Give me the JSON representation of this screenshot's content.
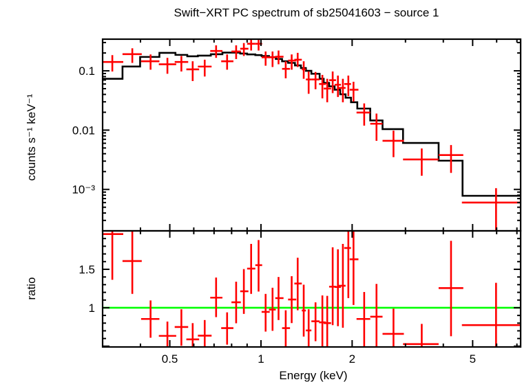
{
  "chart_data": {
    "type": "scatter",
    "title": "Swift−XRT PC spectrum of sb25041603 − source 1",
    "xlabel": "Energy (keV)",
    "xscale": "log",
    "xlim": [
      0.3,
      7.2
    ],
    "x_ticks": [
      0.5,
      1,
      2,
      5
    ],
    "x_ticklabels": [
      "0.5",
      "1",
      "2",
      "5"
    ],
    "colors": {
      "data": "#ff0000",
      "model": "#000000",
      "unity": "#00ff00",
      "axes": "#000000"
    },
    "panels": [
      {
        "name": "spectrum",
        "ylabel": "counts s⁻¹ keV⁻¹",
        "yscale": "log",
        "ylim": [
          0.0002,
          0.342
        ],
        "y_ticks": [
          0.1,
          0.01,
          0.001
        ],
        "y_ticklabels": [
          "0.1",
          "0.01",
          "10⁻³"
        ],
        "data_points": [
          [
            0.323,
            0.299,
            0.351,
            0.141,
            0.0974,
            0.184
          ],
          [
            0.376,
            0.349,
            0.404,
            0.191,
            0.136,
            0.24
          ],
          [
            0.432,
            0.402,
            0.462,
            0.145,
            0.1045,
            0.189
          ],
          [
            0.491,
            0.46,
            0.525,
            0.129,
            0.0892,
            0.1655
          ],
          [
            0.546,
            0.519,
            0.575,
            0.141,
            0.0974,
            0.178
          ],
          [
            0.595,
            0.567,
            0.625,
            0.106,
            0.0672,
            0.145
          ],
          [
            0.652,
            0.619,
            0.687,
            0.118,
            0.0802,
            0.154
          ],
          [
            0.711,
            0.68,
            0.746,
            0.216,
            0.1655,
            0.269
          ],
          [
            0.773,
            0.739,
            0.811,
            0.145,
            0.1045,
            0.189
          ],
          [
            0.828,
            0.799,
            0.858,
            0.212,
            0.158,
            0.269
          ],
          [
            0.878,
            0.854,
            0.909,
            0.236,
            0.178,
            0.294
          ],
          [
            0.928,
            0.9,
            0.958,
            0.286,
            0.22,
            0.351
          ],
          [
            0.982,
            0.958,
            1.009,
            0.286,
            0.22,
            0.351
          ],
          [
            1.036,
            1.005,
            1.069,
            0.169,
            0.122,
            0.212
          ],
          [
            1.092,
            1.063,
            1.119,
            0.169,
            0.116,
            0.212
          ],
          [
            1.143,
            1.115,
            1.187,
            0.173,
            0.129,
            0.22
          ],
          [
            1.207,
            1.174,
            1.247,
            0.108,
            0.0747,
            0.145
          ],
          [
            1.263,
            1.229,
            1.308,
            0.149,
            0.1045,
            0.189
          ],
          [
            1.322,
            1.289,
            1.364,
            0.154,
            0.116,
            0.201
          ],
          [
            1.384,
            1.364,
            1.407,
            0.106,
            0.0734,
            0.145
          ],
          [
            1.437,
            1.407,
            1.467,
            0.0715,
            0.041,
            0.0974
          ],
          [
            1.514,
            1.467,
            1.562,
            0.0715,
            0.0489,
            0.0957
          ],
          [
            1.595,
            1.555,
            1.638,
            0.0599,
            0.0343,
            0.0853
          ],
          [
            1.655,
            1.611,
            1.704,
            0.0502,
            0.0295,
            0.0734
          ],
          [
            1.725,
            1.679,
            1.769,
            0.0696,
            0.0421,
            0.0974
          ],
          [
            1.795,
            1.751,
            1.837,
            0.0583,
            0.0362,
            0.0831
          ],
          [
            1.864,
            1.806,
            1.903,
            0.0515,
            0.0295,
            0.0734
          ],
          [
            1.943,
            1.883,
            1.983,
            0.0599,
            0.0375,
            0.0831
          ],
          [
            2.021,
            1.963,
            2.098,
            0.048,
            0.0303,
            0.0654
          ],
          [
            2.192,
            2.068,
            2.295,
            0.0198,
            0.0119,
            0.0282
          ],
          [
            2.407,
            2.295,
            2.52,
            0.0128,
            0.0066,
            0.019
          ],
          [
            2.739,
            2.52,
            2.964,
            0.0066,
            0.0035,
            0.0098
          ],
          [
            3.395,
            2.945,
            3.86,
            0.0032,
            0.0017,
            0.0049
          ],
          [
            4.242,
            3.86,
            4.656,
            0.0038,
            0.0019,
            0.0056
          ],
          [
            5.973,
            4.607,
            7.36,
            0.0006,
            0.0001,
            0.00105
          ]
        ],
        "model_step": {
          "edges": [
            0.299,
            0.349,
            0.399,
            0.462,
            0.522,
            0.571,
            0.619,
            0.683,
            0.746,
            0.854,
            0.9,
            0.958,
            1.005,
            1.063,
            1.119,
            1.174,
            1.229,
            1.295,
            1.355,
            1.407,
            1.467,
            1.562,
            1.611,
            1.679,
            1.751,
            1.826,
            1.903,
            1.983,
            2.08,
            2.295,
            2.52,
            2.945,
            3.86,
            4.63,
            7.36
          ],
          "values": [
            0.0734,
            0.1183,
            0.1715,
            0.2011,
            0.1857,
            0.176,
            0.1807,
            0.1907,
            0.2029,
            0.1958,
            0.189,
            0.1841,
            0.1776,
            0.17,
            0.1584,
            0.1449,
            0.1362,
            0.1236,
            0.1112,
            0.1,
            0.0892,
            0.0734,
            0.0626,
            0.0548,
            0.048,
            0.0402,
            0.0352,
            0.0295,
            0.0231,
            0.01456,
            0.0104,
            0.00607,
            0.00305,
            0.00078
          ]
        }
      },
      {
        "name": "ratio",
        "ylabel": "ratio",
        "yscale": "linear",
        "ylim": [
          0.49,
          2.0
        ],
        "y_ticks": [
          1.5,
          1
        ],
        "y_ticklabels": [
          "1.5",
          "1"
        ],
        "reference_line": 1,
        "data_points": [
          [
            1.958,
            1.363,
            2.2
          ],
          [
            1.607,
            1.18,
            2.0
          ],
          [
            0.854,
            0.61,
            1.095
          ],
          [
            0.634,
            0.4,
            0.82
          ],
          [
            0.75,
            0.506,
            0.98
          ],
          [
            0.589,
            0.4,
            0.8
          ],
          [
            0.637,
            0.4,
            0.84
          ],
          [
            1.131,
            0.878,
            1.393
          ],
          [
            0.735,
            0.52,
            0.94
          ],
          [
            1.071,
            0.798,
            1.339
          ],
          [
            1.214,
            0.92,
            1.503
          ],
          [
            1.509,
            1.18,
            1.83
          ],
          [
            1.554,
            1.21,
            1.88
          ],
          [
            0.946,
            0.69,
            1.18
          ],
          [
            0.976,
            0.7,
            1.26
          ],
          [
            1.125,
            0.84,
            1.4
          ],
          [
            0.735,
            0.49,
            0.967
          ],
          [
            1.107,
            0.8,
            1.41
          ],
          [
            1.315,
            0.967,
            1.65
          ],
          [
            0.964,
            0.625,
            1.3
          ],
          [
            0.705,
            0.4,
            0.98
          ],
          [
            0.824,
            0.565,
            1.07
          ],
          [
            0.81,
            0.4,
            1.16
          ],
          [
            0.8,
            0.4,
            1.155
          ],
          [
            1.274,
            0.774,
            1.786
          ],
          [
            1.27,
            0.76,
            1.76
          ],
          [
            1.286,
            0.74,
            1.83
          ],
          [
            1.777,
            1.125,
            2.2
          ],
          [
            1.63,
            1.036,
            2.2
          ],
          [
            0.854,
            0.4,
            1.205
          ],
          [
            0.884,
            0.4,
            1.31
          ],
          [
            0.66,
            0.4,
            0.988
          ],
          [
            0.527,
            0.4,
            0.79
          ],
          [
            1.256,
            0.63,
            1.87
          ],
          [
            0.774,
            0.4,
            1.324
          ]
        ]
      }
    ]
  }
}
